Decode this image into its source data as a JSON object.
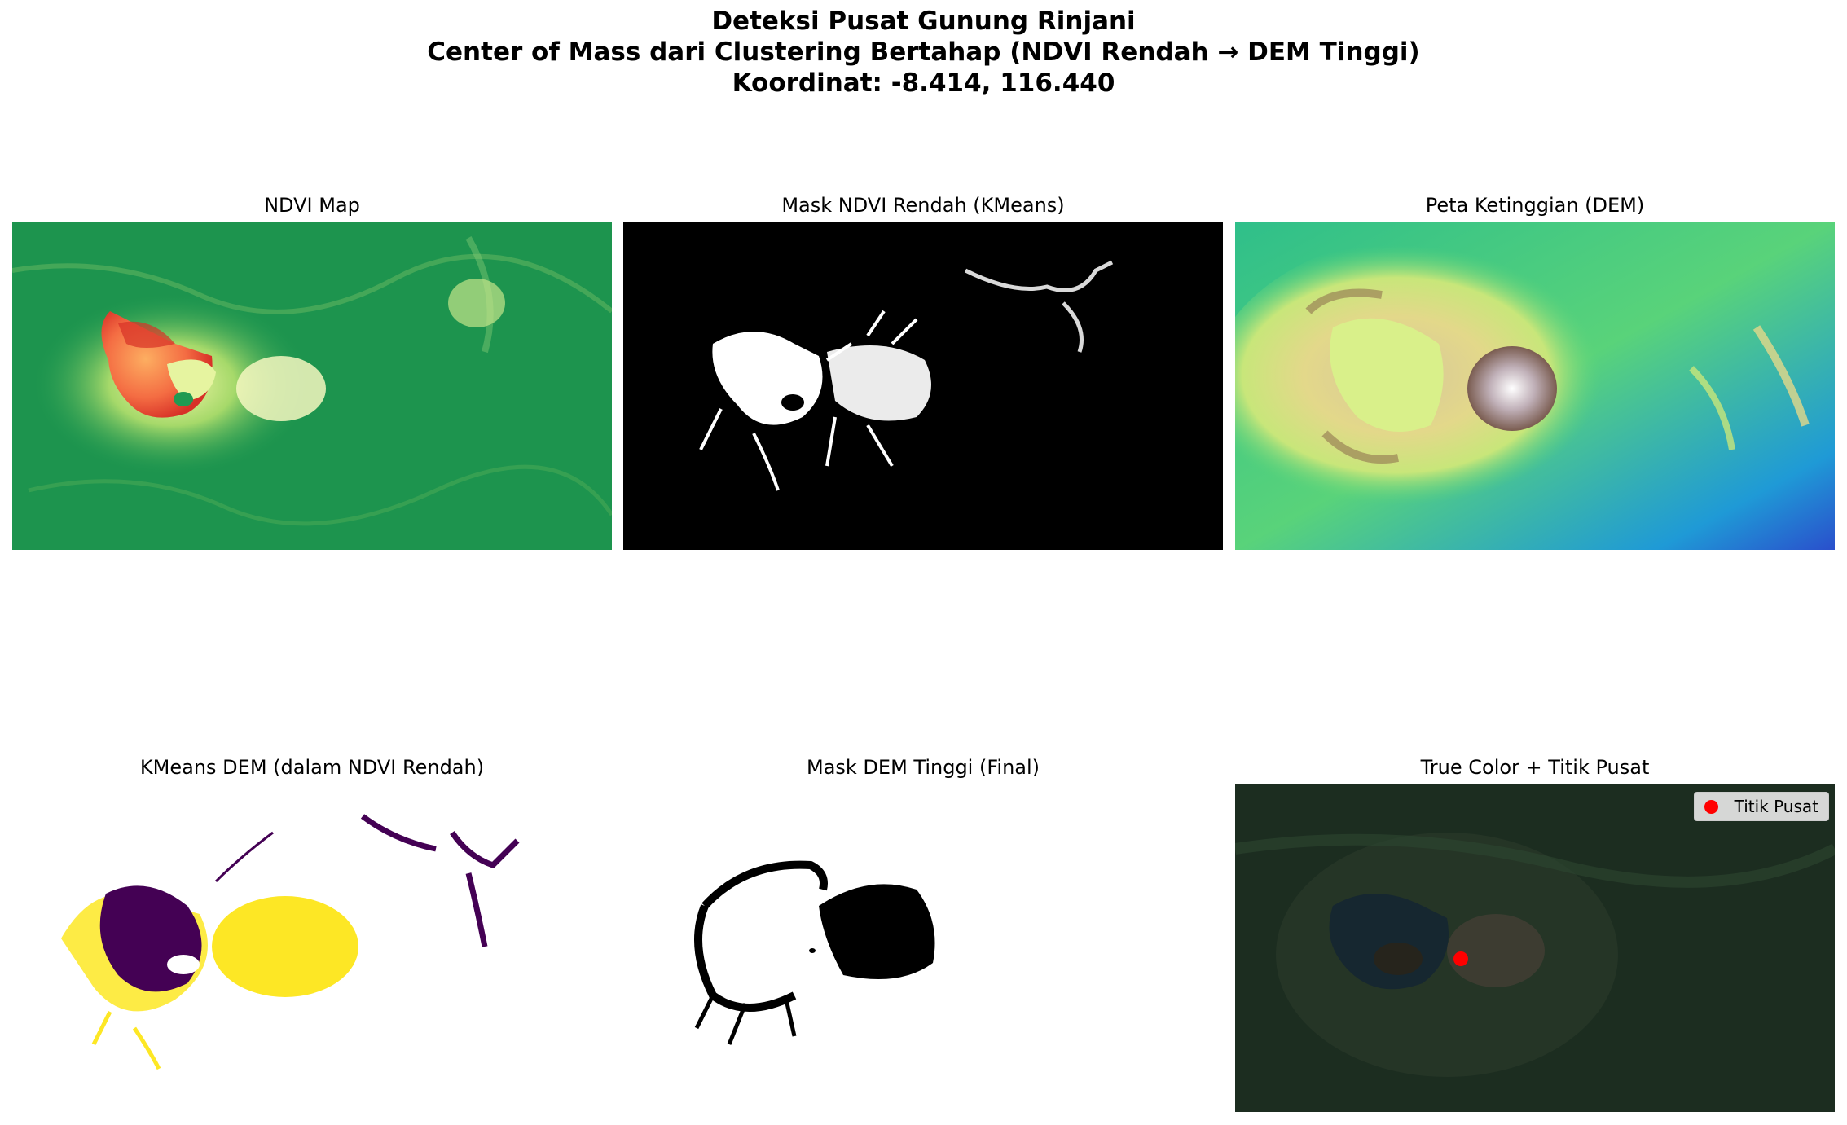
{
  "figure": {
    "title_line1": "Deteksi Pusat Gunung Rinjani",
    "title_line2": "Center of Mass dari Clustering Bertahap (NDVI Rendah → DEM Tinggi)",
    "title_line3": "Koordinat: -8.414, 116.440"
  },
  "panels": [
    {
      "title": "NDVI Map"
    },
    {
      "title": "Mask NDVI Rendah (KMeans)"
    },
    {
      "title": "Peta Ketinggian (DEM)"
    },
    {
      "title": "KMeans DEM (dalam NDVI Rendah)"
    },
    {
      "title": "Mask DEM Tinggi (Final)"
    },
    {
      "title": "True Color + Titik Pusat"
    }
  ],
  "center_point": {
    "legend_label": "Titik Pusat",
    "color": "#ff0000",
    "lat": -8.414,
    "lon": 116.44
  },
  "colors": {
    "ndvi_high": "#1f9a52",
    "ndvi_low": "#d73027",
    "mask_on": "#ffffff",
    "mask_off": "#000000",
    "cluster_a": "#440154",
    "cluster_b": "#fde725",
    "dem_low": "#1e64d2",
    "dem_high": "#ffffff"
  }
}
